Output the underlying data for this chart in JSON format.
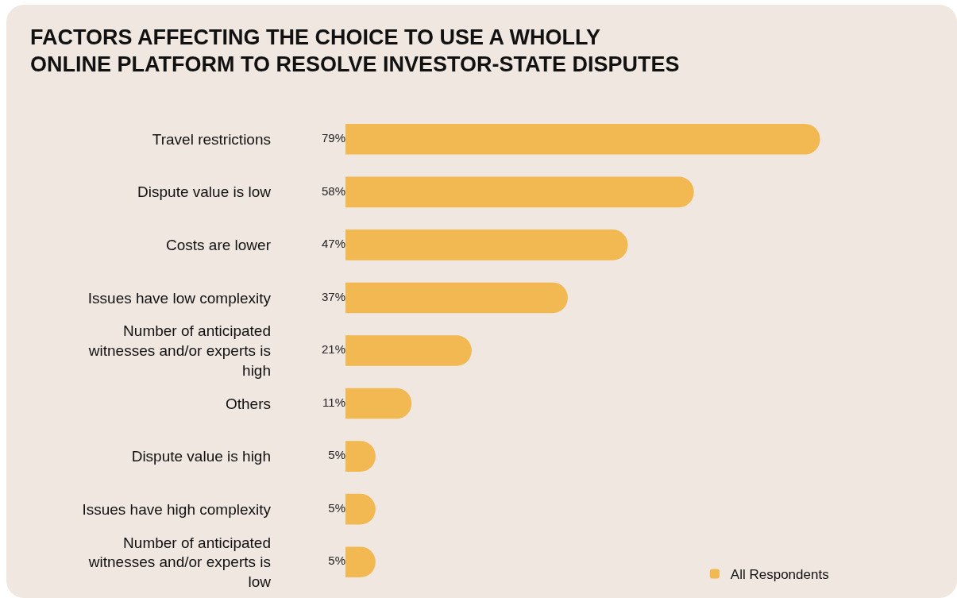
{
  "chart_data": {
    "type": "bar",
    "orientation": "horizontal",
    "title": "FACTORS AFFECTING THE CHOICE TO USE A WHOLLY ONLINE PLATFORM TO RESOLVE INVESTOR-STATE DISPUTES",
    "categories": [
      "Travel restrictions",
      "Dispute value is low",
      "Costs are lower",
      "Issues have low complexity",
      "Number of anticipated witnesses and/or experts is high",
      "Others",
      "Dispute value is high",
      "Issues have high complexity",
      "Number of anticipated witnesses and/or experts is low"
    ],
    "series": [
      {
        "name": "All Respondents",
        "color": "#f2b852",
        "values": [
          79,
          58,
          47,
          37,
          21,
          11,
          5,
          5,
          5
        ],
        "value_labels": [
          "79%",
          "58%",
          "47%",
          "37%",
          "21%",
          "11%",
          "5%",
          "5%",
          "5%"
        ]
      }
    ],
    "tick_labels": "y",
    "legend": "bottom right"
  }
}
